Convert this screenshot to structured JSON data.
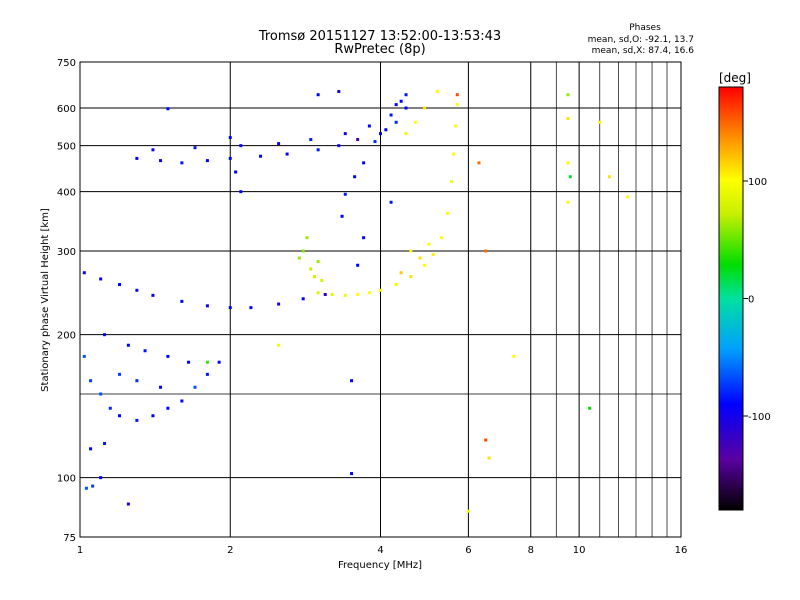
{
  "chart_data": {
    "type": "scatter",
    "title": "Tromsø 20151127 13:52:00-13:53:43",
    "subtitle": "RwPretec (8p)",
    "xlabel": "Frequency [MHz]",
    "ylabel": "Stationary phase Virtual Height [km]",
    "x_scale": "log",
    "y_scale": "log",
    "xlim": [
      1,
      16
    ],
    "ylim": [
      75,
      750
    ],
    "x_ticks": [
      1,
      2,
      4,
      6,
      8,
      10,
      16
    ],
    "y_ticks": [
      75,
      100,
      200,
      300,
      400,
      500,
      600,
      750
    ],
    "phase_box": {
      "title": "Phases",
      "line_o": "mean, sd,O: -92.1, 13.7",
      "line_x": "mean, sd,X:  87.4, 16.6"
    },
    "colorbar": {
      "label": "[deg]",
      "range": [
        -180,
        180
      ],
      "ticks": [
        100,
        0,
        -100
      ]
    },
    "series": [
      {
        "values": [
          {
            "x": 1.3,
            "y": 470,
            "phase": -100
          },
          {
            "x": 1.45,
            "y": 465,
            "phase": -105
          },
          {
            "x": 1.6,
            "y": 460,
            "phase": -95
          },
          {
            "x": 1.8,
            "y": 465,
            "phase": -100
          },
          {
            "x": 2.0,
            "y": 470,
            "phase": -98
          },
          {
            "x": 2.3,
            "y": 475,
            "phase": -100
          },
          {
            "x": 2.6,
            "y": 480,
            "phase": -102
          },
          {
            "x": 3.0,
            "y": 490,
            "phase": -95
          },
          {
            "x": 3.3,
            "y": 500,
            "phase": -110
          },
          {
            "x": 3.6,
            "y": 515,
            "phase": -130
          },
          {
            "x": 4.0,
            "y": 530,
            "phase": -100
          },
          {
            "x": 4.3,
            "y": 560,
            "phase": -90
          },
          {
            "x": 4.5,
            "y": 600,
            "phase": -100
          },
          {
            "x": 1.4,
            "y": 490,
            "phase": -100
          },
          {
            "x": 1.7,
            "y": 495,
            "phase": -95
          },
          {
            "x": 2.1,
            "y": 500,
            "phase": -100
          },
          {
            "x": 2.5,
            "y": 505,
            "phase": -105
          },
          {
            "x": 2.9,
            "y": 515,
            "phase": -95
          },
          {
            "x": 3.4,
            "y": 530,
            "phase": -100
          },
          {
            "x": 3.8,
            "y": 550,
            "phase": -100
          },
          {
            "x": 4.2,
            "y": 580,
            "phase": -95
          },
          {
            "x": 4.4,
            "y": 620,
            "phase": -100
          },
          {
            "x": 1.02,
            "y": 270,
            "phase": -100
          },
          {
            "x": 1.1,
            "y": 262,
            "phase": -102
          },
          {
            "x": 1.2,
            "y": 255,
            "phase": -100
          },
          {
            "x": 1.3,
            "y": 248,
            "phase": -98
          },
          {
            "x": 1.4,
            "y": 242,
            "phase": -100
          },
          {
            "x": 1.6,
            "y": 235,
            "phase": -100
          },
          {
            "x": 1.8,
            "y": 230,
            "phase": -105
          },
          {
            "x": 2.0,
            "y": 228,
            "phase": -100
          },
          {
            "x": 2.2,
            "y": 228,
            "phase": -100
          },
          {
            "x": 2.5,
            "y": 232,
            "phase": -110
          },
          {
            "x": 2.8,
            "y": 238,
            "phase": -100
          },
          {
            "x": 3.1,
            "y": 243,
            "phase": -120
          },
          {
            "x": 1.02,
            "y": 180,
            "phase": -80
          },
          {
            "x": 1.05,
            "y": 160,
            "phase": -85
          },
          {
            "x": 1.1,
            "y": 150,
            "phase": -80
          },
          {
            "x": 1.15,
            "y": 140,
            "phase": -90
          },
          {
            "x": 1.2,
            "y": 135,
            "phase": -100
          },
          {
            "x": 1.3,
            "y": 132,
            "phase": -95
          },
          {
            "x": 1.4,
            "y": 135,
            "phase": -100
          },
          {
            "x": 1.5,
            "y": 140,
            "phase": -100
          },
          {
            "x": 1.6,
            "y": 145,
            "phase": -100
          },
          {
            "x": 1.7,
            "y": 155,
            "phase": -80
          },
          {
            "x": 1.8,
            "y": 165,
            "phase": -95
          },
          {
            "x": 1.9,
            "y": 175,
            "phase": -100
          },
          {
            "x": 1.12,
            "y": 200,
            "phase": -100
          },
          {
            "x": 1.25,
            "y": 190,
            "phase": -100
          },
          {
            "x": 1.35,
            "y": 185,
            "phase": -95
          },
          {
            "x": 1.5,
            "y": 180,
            "phase": -100
          },
          {
            "x": 1.65,
            "y": 175,
            "phase": -100
          },
          {
            "x": 1.2,
            "y": 165,
            "phase": -85
          },
          {
            "x": 1.3,
            "y": 160,
            "phase": -90
          },
          {
            "x": 1.45,
            "y": 155,
            "phase": -100
          },
          {
            "x": 1.03,
            "y": 95,
            "phase": -80
          },
          {
            "x": 1.06,
            "y": 96,
            "phase": -85
          },
          {
            "x": 1.1,
            "y": 100,
            "phase": -100
          },
          {
            "x": 1.05,
            "y": 115,
            "phase": -100
          },
          {
            "x": 1.12,
            "y": 118,
            "phase": -95
          },
          {
            "x": 1.25,
            "y": 88,
            "phase": -110
          },
          {
            "x": 3.35,
            "y": 355,
            "phase": -100
          },
          {
            "x": 3.4,
            "y": 395,
            "phase": -95
          },
          {
            "x": 3.55,
            "y": 430,
            "phase": -100
          },
          {
            "x": 3.7,
            "y": 460,
            "phase": -100
          },
          {
            "x": 3.9,
            "y": 510,
            "phase": -90
          },
          {
            "x": 4.1,
            "y": 540,
            "phase": -100
          },
          {
            "x": 4.3,
            "y": 610,
            "phase": -100
          },
          {
            "x": 4.5,
            "y": 640,
            "phase": -95
          },
          {
            "x": 2.0,
            "y": 520,
            "phase": -100
          },
          {
            "x": 2.05,
            "y": 440,
            "phase": -100
          },
          {
            "x": 2.1,
            "y": 400,
            "phase": -100
          },
          {
            "x": 3.7,
            "y": 320,
            "phase": -100
          },
          {
            "x": 3.6,
            "y": 280,
            "phase": -100
          },
          {
            "x": 4.2,
            "y": 380,
            "phase": -95
          },
          {
            "x": 1.5,
            "y": 598,
            "phase": -100
          },
          {
            "x": 3.0,
            "y": 640,
            "phase": -100
          },
          {
            "x": 3.3,
            "y": 650,
            "phase": -110
          },
          {
            "x": 3.5,
            "y": 160,
            "phase": -100
          },
          {
            "x": 3.5,
            "y": 102,
            "phase": -100
          }
        ]
      },
      {
        "values": [
          {
            "x": 3.0,
            "y": 245,
            "phase": 80
          },
          {
            "x": 3.2,
            "y": 243,
            "phase": 85
          },
          {
            "x": 3.4,
            "y": 242,
            "phase": 90
          },
          {
            "x": 3.6,
            "y": 243,
            "phase": 100
          },
          {
            "x": 3.8,
            "y": 245,
            "phase": 95
          },
          {
            "x": 4.0,
            "y": 248,
            "phase": 100
          },
          {
            "x": 4.3,
            "y": 255,
            "phase": 100
          },
          {
            "x": 4.6,
            "y": 265,
            "phase": 110
          },
          {
            "x": 4.9,
            "y": 280,
            "phase": 100
          },
          {
            "x": 5.1,
            "y": 295,
            "phase": 105
          },
          {
            "x": 5.3,
            "y": 320,
            "phase": 100
          },
          {
            "x": 5.45,
            "y": 360,
            "phase": 100
          },
          {
            "x": 5.55,
            "y": 420,
            "phase": 95
          },
          {
            "x": 5.6,
            "y": 480,
            "phase": 100
          },
          {
            "x": 5.65,
            "y": 550,
            "phase": 100
          },
          {
            "x": 5.7,
            "y": 610,
            "phase": 100
          },
          {
            "x": 2.75,
            "y": 290,
            "phase": 60
          },
          {
            "x": 2.8,
            "y": 300,
            "phase": 55
          },
          {
            "x": 2.85,
            "y": 320,
            "phase": 60
          },
          {
            "x": 2.9,
            "y": 275,
            "phase": 70
          },
          {
            "x": 2.95,
            "y": 265,
            "phase": 75
          },
          {
            "x": 3.0,
            "y": 285,
            "phase": 60
          },
          {
            "x": 3.05,
            "y": 260,
            "phase": 80
          },
          {
            "x": 4.6,
            "y": 300,
            "phase": 100
          },
          {
            "x": 4.8,
            "y": 290,
            "phase": 110
          },
          {
            "x": 5.0,
            "y": 310,
            "phase": 100
          },
          {
            "x": 4.4,
            "y": 270,
            "phase": 120
          },
          {
            "x": 4.5,
            "y": 530,
            "phase": 90
          },
          {
            "x": 4.7,
            "y": 560,
            "phase": 100
          },
          {
            "x": 4.9,
            "y": 600,
            "phase": 110
          },
          {
            "x": 5.2,
            "y": 650,
            "phase": 100
          },
          {
            "x": 5.7,
            "y": 640,
            "phase": 160
          },
          {
            "x": 6.5,
            "y": 120,
            "phase": 160
          },
          {
            "x": 6.5,
            "y": 300,
            "phase": 150
          },
          {
            "x": 6.3,
            "y": 460,
            "phase": 150
          },
          {
            "x": 9.5,
            "y": 380,
            "phase": 100
          },
          {
            "x": 9.5,
            "y": 570,
            "phase": 110
          },
          {
            "x": 9.5,
            "y": 460,
            "phase": 100
          },
          {
            "x": 11.0,
            "y": 560,
            "phase": 100
          },
          {
            "x": 11.5,
            "y": 430,
            "phase": 110
          },
          {
            "x": 12.5,
            "y": 390,
            "phase": 100
          },
          {
            "x": 7.4,
            "y": 180,
            "phase": 100
          },
          {
            "x": 6.6,
            "y": 110,
            "phase": 110
          },
          {
            "x": 6.0,
            "y": 85,
            "phase": 100
          },
          {
            "x": 2.5,
            "y": 190,
            "phase": 90
          },
          {
            "x": 1.8,
            "y": 175,
            "phase": 40
          },
          {
            "x": 9.5,
            "y": 640,
            "phase": 60
          },
          {
            "x": 9.6,
            "y": 430,
            "phase": 20
          },
          {
            "x": 10.5,
            "y": 140,
            "phase": 30
          }
        ]
      }
    ]
  }
}
